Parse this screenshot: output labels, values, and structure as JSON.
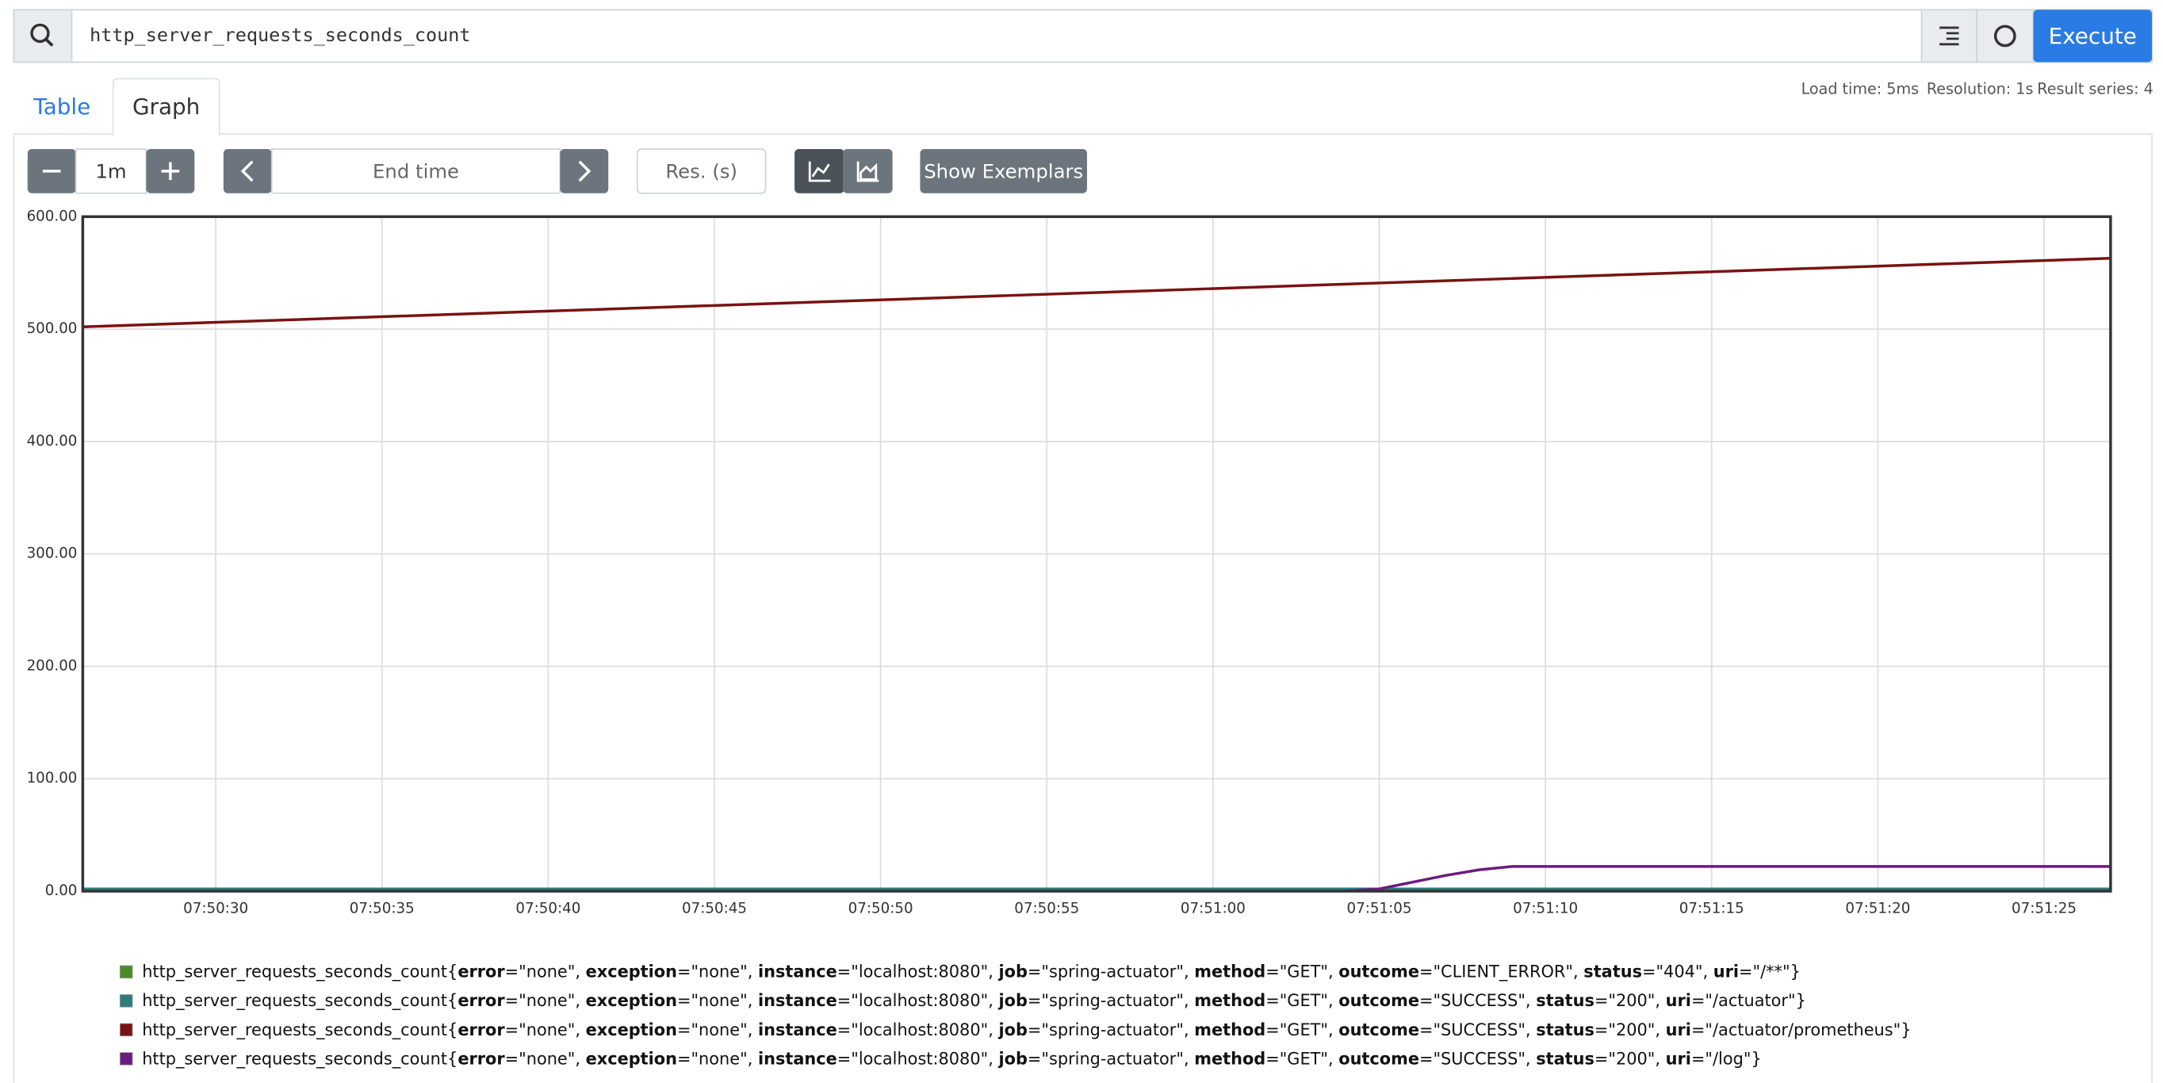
{
  "query": "http_server_requests_seconds_count",
  "buttons": {
    "execute": "Execute"
  },
  "tabs": [
    "Table",
    "Graph"
  ],
  "stats": [
    "Load time: 5ms",
    "Resolution: 1s",
    "Result series: 4"
  ],
  "controls": {
    "range": "1m",
    "end_time": "End time",
    "resolution": "Res. (s)",
    "exemplars": "Show Exemplars"
  },
  "chart_data": {
    "type": "line",
    "x": [
      "07:50:26",
      "07:51:03",
      "07:51:04",
      "07:51:05",
      "07:51:06",
      "07:51:07",
      "07:51:08",
      "07:51:09",
      "07:51:27"
    ],
    "xlim": [
      "07:50:26",
      "07:51:27"
    ],
    "xticks": [
      "07:50:30",
      "07:50:35",
      "07:50:40",
      "07:50:45",
      "07:50:50",
      "07:50:55",
      "07:51:00",
      "07:51:05",
      "07:51:10",
      "07:51:15",
      "07:51:20",
      "07:51:25"
    ],
    "ylim": [
      0,
      600
    ],
    "yticks": [
      {
        "value": 0,
        "label": "0.00"
      },
      {
        "value": 100,
        "label": "100.00"
      },
      {
        "value": 200,
        "label": "200.00"
      },
      {
        "value": 300,
        "label": "300.00"
      },
      {
        "value": 400,
        "label": "400.00"
      },
      {
        "value": 500,
        "label": "500.00"
      },
      {
        "value": 600,
        "label": "600.00"
      }
    ],
    "grid": true,
    "series": [
      {
        "name": "http_server_requests_seconds_count{error=\"none\", exception=\"none\", instance=\"localhost:8080\", job=\"spring-actuator\", method=\"GET\", outcome=\"CLIENT_ERROR\", status=\"404\", uri=\"/**\"}",
        "color": "#4a8c2a",
        "values": [
          1,
          1,
          1,
          1,
          1,
          1,
          1,
          1,
          1
        ]
      },
      {
        "name": "http_server_requests_seconds_count{error=\"none\", exception=\"none\", instance=\"localhost:8080\", job=\"spring-actuator\", method=\"GET\", outcome=\"SUCCESS\", status=\"200\", uri=\"/actuator\"}",
        "color": "#2e7b7b",
        "values": [
          2,
          2,
          2,
          2,
          2,
          2,
          2,
          2,
          2
        ]
      },
      {
        "name": "http_server_requests_seconds_count{error=\"none\", exception=\"none\", instance=\"localhost:8080\", job=\"spring-actuator\", method=\"GET\", outcome=\"SUCCESS\", status=\"200\", uri=\"/actuator/prometheus\"}",
        "color": "#7a1212",
        "values": [
          502,
          539,
          540,
          541,
          542,
          543,
          544,
          545,
          563
        ]
      },
      {
        "name": "http_server_requests_seconds_count{error=\"none\", exception=\"none\", instance=\"localhost:8080\", job=\"spring-actuator\", method=\"GET\", outcome=\"SUCCESS\", status=\"200\", uri=\"/log\"}",
        "color": "#6d1a80",
        "values": [
          null,
          null,
          0,
          2,
          8,
          14,
          19,
          22,
          22
        ]
      }
    ]
  }
}
